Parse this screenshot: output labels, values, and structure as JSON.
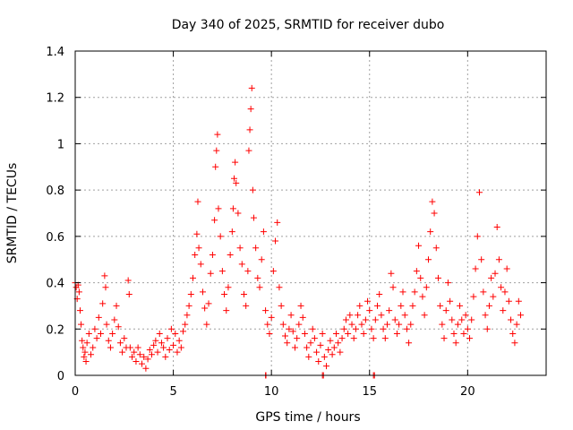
{
  "chart_data": {
    "type": "scatter",
    "title": "Day 340 of 2025, SRMTID for receiver dubo",
    "xlabel": "GPS time / hours",
    "ylabel": "SRMTID / TECUs",
    "xlim": [
      0,
      24
    ],
    "ylim": [
      0,
      1.4
    ],
    "xticks": [
      0,
      5,
      10,
      15,
      20
    ],
    "xtick_labels": [
      "0",
      "5",
      "10",
      "15",
      "20"
    ],
    "yticks": [
      0,
      0.2,
      0.4,
      0.6,
      0.8,
      1,
      1.2,
      1.4
    ],
    "ytick_labels": [
      "0",
      "0.2",
      "0.4",
      "0.6",
      "0.8",
      "1",
      "1.2",
      "1.4"
    ],
    "grid": true,
    "marker": "plus",
    "color": "#ff0000",
    "series": [
      {
        "name": "SRMTID",
        "points": [
          [
            0.0,
            0.4
          ],
          [
            0.05,
            0.38
          ],
          [
            0.1,
            0.33
          ],
          [
            0.15,
            0.39
          ],
          [
            0.2,
            0.36
          ],
          [
            0.25,
            0.28
          ],
          [
            0.3,
            0.22
          ],
          [
            0.35,
            0.15
          ],
          [
            0.4,
            0.12
          ],
          [
            0.45,
            0.08
          ],
          [
            0.5,
            0.1
          ],
          [
            0.55,
            0.06
          ],
          [
            0.6,
            0.14
          ],
          [
            0.7,
            0.18
          ],
          [
            0.8,
            0.09
          ],
          [
            0.9,
            0.12
          ],
          [
            1.0,
            0.2
          ],
          [
            1.1,
            0.16
          ],
          [
            1.2,
            0.25
          ],
          [
            1.3,
            0.18
          ],
          [
            1.4,
            0.31
          ],
          [
            1.5,
            0.43
          ],
          [
            1.55,
            0.38
          ],
          [
            1.6,
            0.22
          ],
          [
            1.7,
            0.15
          ],
          [
            1.8,
            0.12
          ],
          [
            1.9,
            0.18
          ],
          [
            2.0,
            0.24
          ],
          [
            2.1,
            0.3
          ],
          [
            2.2,
            0.21
          ],
          [
            2.3,
            0.14
          ],
          [
            2.4,
            0.1
          ],
          [
            2.5,
            0.16
          ],
          [
            2.6,
            0.12
          ],
          [
            2.7,
            0.41
          ],
          [
            2.75,
            0.35
          ],
          [
            2.8,
            0.12
          ],
          [
            2.9,
            0.08
          ],
          [
            3.0,
            0.1
          ],
          [
            3.1,
            0.06
          ],
          [
            3.2,
            0.12
          ],
          [
            3.3,
            0.09
          ],
          [
            3.4,
            0.05
          ],
          [
            3.5,
            0.08
          ],
          [
            3.6,
            0.03
          ],
          [
            3.7,
            0.07
          ],
          [
            3.8,
            0.11
          ],
          [
            3.9,
            0.09
          ],
          [
            4.0,
            0.13
          ],
          [
            4.1,
            0.15
          ],
          [
            4.2,
            0.1
          ],
          [
            4.3,
            0.18
          ],
          [
            4.4,
            0.14
          ],
          [
            4.5,
            0.12
          ],
          [
            4.6,
            0.08
          ],
          [
            4.7,
            0.16
          ],
          [
            4.8,
            0.11
          ],
          [
            4.9,
            0.2
          ],
          [
            5.0,
            0.13
          ],
          [
            5.1,
            0.18
          ],
          [
            5.2,
            0.1
          ],
          [
            5.3,
            0.15
          ],
          [
            5.4,
            0.12
          ],
          [
            5.5,
            0.19
          ],
          [
            5.6,
            0.22
          ],
          [
            5.7,
            0.26
          ],
          [
            5.8,
            0.3
          ],
          [
            5.9,
            0.35
          ],
          [
            6.0,
            0.42
          ],
          [
            6.1,
            0.52
          ],
          [
            6.2,
            0.61
          ],
          [
            6.25,
            0.75
          ],
          [
            6.3,
            0.55
          ],
          [
            6.4,
            0.48
          ],
          [
            6.5,
            0.36
          ],
          [
            6.6,
            0.29
          ],
          [
            6.7,
            0.22
          ],
          [
            6.8,
            0.31
          ],
          [
            6.9,
            0.44
          ],
          [
            7.0,
            0.52
          ],
          [
            7.1,
            0.67
          ],
          [
            7.15,
            0.9
          ],
          [
            7.2,
            0.97
          ],
          [
            7.25,
            1.04
          ],
          [
            7.3,
            0.72
          ],
          [
            7.4,
            0.6
          ],
          [
            7.5,
            0.45
          ],
          [
            7.6,
            0.35
          ],
          [
            7.7,
            0.28
          ],
          [
            7.8,
            0.38
          ],
          [
            7.9,
            0.52
          ],
          [
            8.0,
            0.62
          ],
          [
            8.05,
            0.72
          ],
          [
            8.1,
            0.85
          ],
          [
            8.15,
            0.92
          ],
          [
            8.2,
            0.83
          ],
          [
            8.3,
            0.7
          ],
          [
            8.4,
            0.55
          ],
          [
            8.5,
            0.48
          ],
          [
            8.6,
            0.35
          ],
          [
            8.7,
            0.3
          ],
          [
            8.8,
            0.45
          ],
          [
            8.85,
            0.97
          ],
          [
            8.9,
            1.06
          ],
          [
            8.95,
            1.15
          ],
          [
            9.0,
            1.24
          ],
          [
            9.05,
            0.8
          ],
          [
            9.1,
            0.68
          ],
          [
            9.2,
            0.55
          ],
          [
            9.3,
            0.42
          ],
          [
            9.4,
            0.38
          ],
          [
            9.5,
            0.5
          ],
          [
            9.6,
            0.62
          ],
          [
            9.7,
            0.28
          ],
          [
            9.8,
            0.22
          ],
          [
            9.9,
            0.18
          ],
          [
            10.0,
            0.25
          ],
          [
            10.1,
            0.45
          ],
          [
            10.2,
            0.58
          ],
          [
            10.3,
            0.66
          ],
          [
            10.4,
            0.38
          ],
          [
            10.5,
            0.3
          ],
          [
            10.6,
            0.22
          ],
          [
            10.7,
            0.17
          ],
          [
            10.8,
            0.14
          ],
          [
            10.9,
            0.2
          ],
          [
            11.0,
            0.26
          ],
          [
            11.1,
            0.19
          ],
          [
            11.2,
            0.12
          ],
          [
            11.3,
            0.16
          ],
          [
            11.4,
            0.22
          ],
          [
            11.5,
            0.3
          ],
          [
            11.6,
            0.25
          ],
          [
            11.7,
            0.18
          ],
          [
            11.8,
            0.12
          ],
          [
            11.9,
            0.08
          ],
          [
            12.0,
            0.14
          ],
          [
            12.1,
            0.2
          ],
          [
            12.2,
            0.16
          ],
          [
            12.3,
            0.1
          ],
          [
            12.4,
            0.06
          ],
          [
            12.5,
            0.13
          ],
          [
            12.6,
            0.18
          ],
          [
            12.7,
            0.08
          ],
          [
            12.8,
            0.04
          ],
          [
            12.9,
            0.11
          ],
          [
            13.0,
            0.15
          ],
          [
            13.1,
            0.09
          ],
          [
            13.2,
            0.12
          ],
          [
            13.3,
            0.18
          ],
          [
            13.4,
            0.14
          ],
          [
            13.5,
            0.1
          ],
          [
            13.6,
            0.16
          ],
          [
            13.7,
            0.2
          ],
          [
            13.8,
            0.24
          ],
          [
            13.9,
            0.18
          ],
          [
            14.0,
            0.26
          ],
          [
            14.1,
            0.22
          ],
          [
            14.2,
            0.16
          ],
          [
            14.3,
            0.2
          ],
          [
            14.4,
            0.26
          ],
          [
            14.5,
            0.3
          ],
          [
            14.6,
            0.22
          ],
          [
            14.7,
            0.18
          ],
          [
            14.8,
            0.24
          ],
          [
            14.9,
            0.32
          ],
          [
            15.0,
            0.28
          ],
          [
            15.1,
            0.2
          ],
          [
            15.2,
            0.16
          ],
          [
            15.3,
            0.24
          ],
          [
            15.4,
            0.3
          ],
          [
            15.5,
            0.35
          ],
          [
            15.6,
            0.26
          ],
          [
            15.7,
            0.2
          ],
          [
            15.8,
            0.16
          ],
          [
            15.9,
            0.22
          ],
          [
            16.0,
            0.28
          ],
          [
            16.1,
            0.44
          ],
          [
            16.2,
            0.38
          ],
          [
            16.3,
            0.24
          ],
          [
            16.4,
            0.18
          ],
          [
            16.5,
            0.22
          ],
          [
            16.6,
            0.3
          ],
          [
            16.7,
            0.36
          ],
          [
            16.8,
            0.26
          ],
          [
            16.9,
            0.2
          ],
          [
            17.0,
            0.14
          ],
          [
            17.1,
            0.22
          ],
          [
            17.2,
            0.3
          ],
          [
            17.3,
            0.36
          ],
          [
            17.4,
            0.45
          ],
          [
            17.5,
            0.56
          ],
          [
            17.6,
            0.42
          ],
          [
            17.7,
            0.34
          ],
          [
            17.8,
            0.26
          ],
          [
            17.9,
            0.38
          ],
          [
            18.0,
            0.5
          ],
          [
            18.1,
            0.62
          ],
          [
            18.2,
            0.75
          ],
          [
            18.3,
            0.7
          ],
          [
            18.4,
            0.55
          ],
          [
            18.5,
            0.42
          ],
          [
            18.6,
            0.3
          ],
          [
            18.7,
            0.22
          ],
          [
            18.8,
            0.16
          ],
          [
            18.9,
            0.28
          ],
          [
            19.0,
            0.4
          ],
          [
            19.1,
            0.32
          ],
          [
            19.2,
            0.24
          ],
          [
            19.3,
            0.18
          ],
          [
            19.4,
            0.14
          ],
          [
            19.5,
            0.22
          ],
          [
            19.6,
            0.3
          ],
          [
            19.7,
            0.24
          ],
          [
            19.8,
            0.18
          ],
          [
            19.9,
            0.26
          ],
          [
            20.0,
            0.2
          ],
          [
            20.1,
            0.16
          ],
          [
            20.2,
            0.24
          ],
          [
            20.3,
            0.34
          ],
          [
            20.4,
            0.46
          ],
          [
            20.5,
            0.6
          ],
          [
            20.6,
            0.79
          ],
          [
            20.7,
            0.5
          ],
          [
            20.8,
            0.36
          ],
          [
            20.9,
            0.26
          ],
          [
            21.0,
            0.2
          ],
          [
            21.1,
            0.3
          ],
          [
            21.2,
            0.42
          ],
          [
            21.3,
            0.34
          ],
          [
            21.4,
            0.44
          ],
          [
            21.5,
            0.64
          ],
          [
            21.6,
            0.5
          ],
          [
            21.7,
            0.38
          ],
          [
            21.8,
            0.28
          ],
          [
            21.9,
            0.36
          ],
          [
            22.0,
            0.46
          ],
          [
            22.1,
            0.32
          ],
          [
            22.2,
            0.24
          ],
          [
            22.3,
            0.18
          ],
          [
            22.4,
            0.14
          ],
          [
            22.5,
            0.22
          ],
          [
            22.6,
            0.32
          ],
          [
            22.7,
            0.26
          ],
          [
            9.7,
            0.0
          ],
          [
            9.72,
            0.0
          ],
          [
            12.6,
            0.0
          ],
          [
            12.65,
            0.0
          ],
          [
            15.2,
            0.0
          ],
          [
            15.25,
            0.0
          ]
        ]
      }
    ]
  }
}
